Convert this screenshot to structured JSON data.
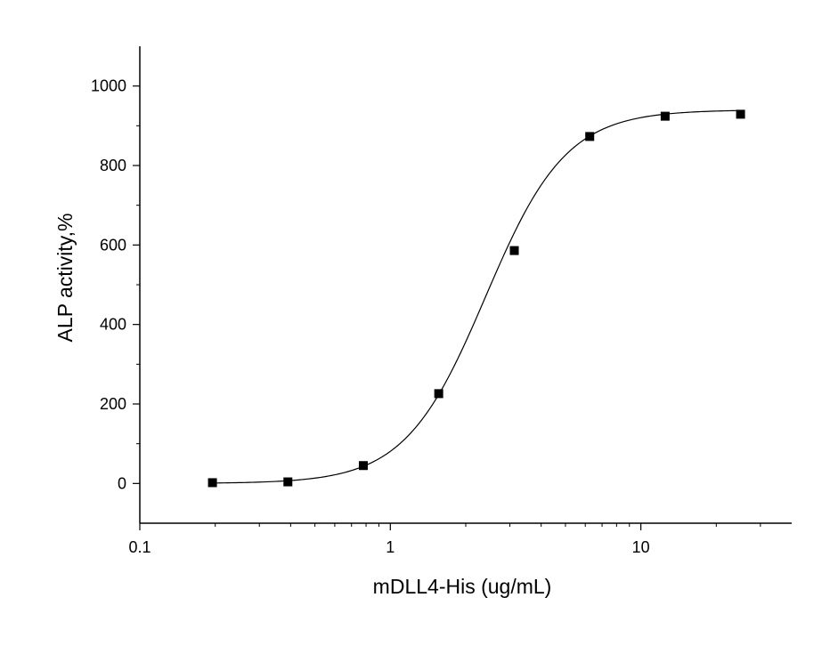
{
  "chart_data": {
    "type": "scatter",
    "title": "",
    "xlabel": "mDLL4-His (ug/mL)",
    "ylabel": "ALP activity,%",
    "x_scale": "log",
    "xlim": [
      0.1,
      40
    ],
    "ylim": [
      -100,
      1100
    ],
    "x_ticks": [
      {
        "value": 0.1,
        "label": "0.1"
      },
      {
        "value": 1,
        "label": "1"
      },
      {
        "value": 10,
        "label": "10"
      }
    ],
    "y_ticks": [
      {
        "value": 0,
        "label": "0"
      },
      {
        "value": 200,
        "label": "200"
      },
      {
        "value": 400,
        "label": "400"
      },
      {
        "value": 600,
        "label": "600"
      },
      {
        "value": 800,
        "label": "800"
      },
      {
        "value": 1000,
        "label": "1000"
      }
    ],
    "grid": false,
    "series": [
      {
        "marker": "square",
        "color": "#000000",
        "x": [
          0.195,
          0.39,
          0.78,
          1.56,
          3.125,
          6.25,
          12.5,
          25
        ],
        "y": [
          2,
          4,
          45,
          226,
          586,
          873,
          924,
          929
        ]
      }
    ],
    "fit_curve": {
      "type": "logistic",
      "bottom": 0,
      "top": 940,
      "ec50": 2.4,
      "hill": 2.7,
      "color": "#000000"
    }
  }
}
